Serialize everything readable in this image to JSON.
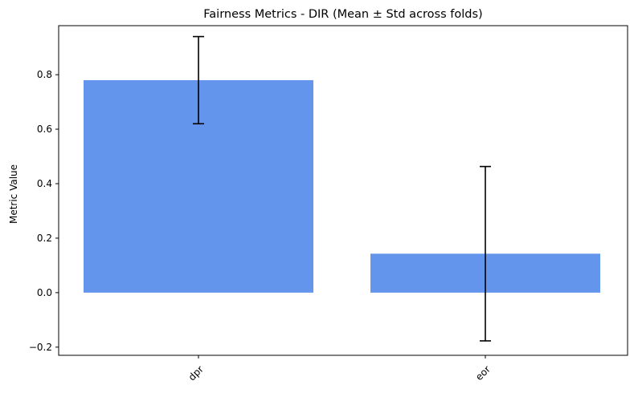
{
  "chart_data": {
    "type": "bar",
    "title": "Fairness Metrics - DIR (Mean ± Std across folds)",
    "xlabel": "",
    "ylabel": "Metric Value",
    "categories": [
      "dpr",
      "eor"
    ],
    "values": [
      0.78,
      0.143
    ],
    "errors": [
      0.16,
      0.32
    ],
    "ylim": [
      -0.23,
      0.98
    ],
    "yticks": [
      -0.2,
      0.0,
      0.2,
      0.4,
      0.6,
      0.8
    ],
    "ytick_labels": [
      "−0.2",
      "0.0",
      "0.2",
      "0.4",
      "0.6",
      "0.8"
    ],
    "bar_color": "#6495ED",
    "error_color": "#000000",
    "grid": false,
    "xtick_rotation": 45
  }
}
